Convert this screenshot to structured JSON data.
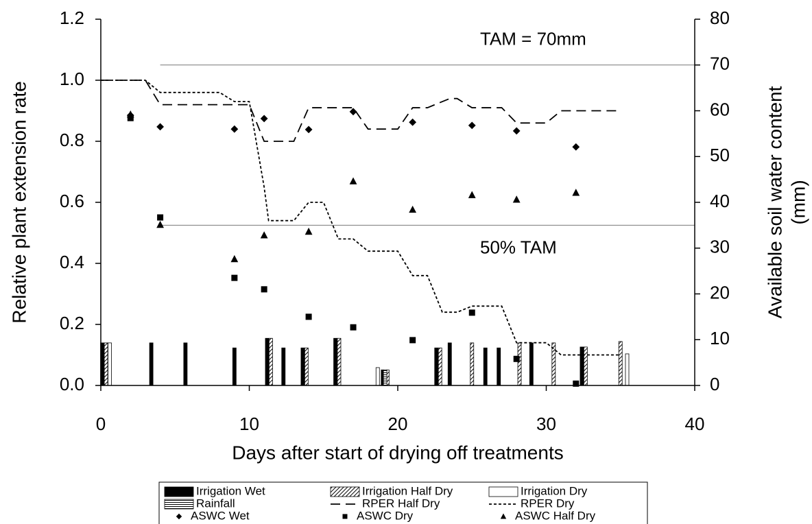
{
  "chart_data": {
    "type": "combo",
    "xlabel": "Days after start of drying off treatments",
    "ylabel": "Relative plant extension rate",
    "y2label": [
      "Available soil water content",
      "(mm)"
    ],
    "xlim": [
      0,
      40
    ],
    "xticks": [
      0,
      10,
      20,
      30,
      40
    ],
    "ylim": [
      0,
      1.2
    ],
    "yticks": [
      {
        "value": 0,
        "label": "0.0"
      },
      {
        "value": 0.2,
        "label": "0.2"
      },
      {
        "value": 0.4,
        "label": "0.4"
      },
      {
        "value": 0.6,
        "label": "0.6"
      },
      {
        "value": 0.8,
        "label": "0.8"
      },
      {
        "value": 1,
        "label": "1.0"
      },
      {
        "value": 1.2,
        "label": "1.2"
      }
    ],
    "y2lim": [
      0,
      80
    ],
    "y2ticks": [
      0,
      10,
      20,
      30,
      40,
      50,
      60,
      70,
      80
    ],
    "reference_lines": [
      {
        "value": 70,
        "axis": "y2",
        "xmin": 4,
        "xmax": 40,
        "label": "TAM = 70mm",
        "label_x": 20
      },
      {
        "value": 35,
        "axis": "y2",
        "xmin": 4,
        "xmax": 40,
        "label": "50% TAM",
        "label_x": 20
      }
    ],
    "series": [
      {
        "name": "Irrigation Wet",
        "kind": "bar",
        "axis": "y2",
        "pattern": "solid",
        "color": "#000000",
        "x": [
          0.1,
          3.4,
          5.7,
          9,
          11.2,
          12.3,
          13.6,
          15.8,
          19,
          22.6,
          23.5,
          25.9,
          26.8,
          29,
          32.4
        ],
        "values": [
          9.3,
          9.3,
          9.3,
          8.2,
          10.3,
          8.2,
          8.2,
          10.3,
          3.4,
          8.2,
          9.3,
          8.2,
          8.2,
          9.3,
          8.4
        ]
      },
      {
        "name": "Irrigation Half Dry",
        "kind": "bar",
        "axis": "y2",
        "pattern": "diag",
        "color": "#000000",
        "x": [
          0.35,
          11.45,
          13.85,
          16.05,
          19.3,
          22.85,
          25,
          28.2,
          30.5,
          32.65,
          35
        ],
        "values": [
          9.3,
          10.3,
          8.2,
          10.3,
          3.4,
          8.2,
          9.3,
          9.3,
          9.3,
          8.4,
          9.6
        ]
      },
      {
        "name": "Irrigation Dry",
        "kind": "bar",
        "axis": "y2",
        "pattern": "open",
        "color": "#000000",
        "x": [
          0.6,
          18.65,
          35.45
        ],
        "values": [
          9.3,
          3.9,
          6.9
        ]
      },
      {
        "name": "Rainfall",
        "kind": "bar",
        "axis": "y2",
        "pattern": "hstripe",
        "color": "#000000",
        "x": [
          19.15
        ],
        "values": [
          3.4
        ]
      },
      {
        "name": "RPER Half Dry",
        "kind": "line",
        "axis": "y",
        "dash": "14,8",
        "color": "#000000",
        "x": [
          0,
          3,
          4,
          10,
          11,
          13,
          14,
          17,
          18,
          20,
          21,
          22,
          23.5,
          24,
          25,
          27,
          28,
          30,
          31,
          35
        ],
        "values": [
          1.0,
          1.0,
          0.92,
          0.92,
          0.8,
          0.8,
          0.91,
          0.91,
          0.84,
          0.84,
          0.91,
          0.91,
          0.94,
          0.94,
          0.91,
          0.91,
          0.86,
          0.86,
          0.9,
          0.9
        ]
      },
      {
        "name": "RPER Dry",
        "kind": "line",
        "axis": "y",
        "dash": "4,3",
        "color": "#000000",
        "x": [
          0,
          3,
          4,
          8,
          9,
          10,
          11,
          11.3,
          13,
          14,
          15,
          16,
          17,
          18,
          20,
          21,
          22,
          23,
          24,
          25,
          27,
          28,
          30,
          31,
          35
        ],
        "values": [
          1.0,
          1.0,
          0.96,
          0.96,
          0.93,
          0.93,
          0.65,
          0.54,
          0.54,
          0.6,
          0.6,
          0.48,
          0.48,
          0.44,
          0.44,
          0.36,
          0.36,
          0.24,
          0.24,
          0.26,
          0.26,
          0.14,
          0.14,
          0.1,
          0.1
        ]
      },
      {
        "name": "ASWC Wet",
        "kind": "scatter",
        "axis": "y2",
        "marker": "diamond",
        "color": "#000000",
        "x": [
          2,
          4,
          9,
          11,
          14,
          17,
          21,
          25,
          28,
          32
        ],
        "values": [
          59,
          56.5,
          56,
          58.3,
          55.9,
          59.8,
          57.5,
          56.8,
          55.6,
          52.1
        ]
      },
      {
        "name": "ASWC Dry",
        "kind": "scatter",
        "axis": "y2",
        "marker": "square",
        "color": "#000000",
        "x": [
          2,
          4,
          9,
          11,
          14,
          17,
          21,
          25,
          28,
          32
        ],
        "values": [
          58.4,
          36.7,
          23.5,
          21,
          15,
          12.7,
          9.9,
          15.9,
          5.8,
          0.4
        ]
      },
      {
        "name": "ASWC Half Dry",
        "kind": "scatter",
        "axis": "y2",
        "marker": "triangle",
        "color": "#000000",
        "x": [
          2,
          4,
          9,
          11,
          14,
          17,
          21,
          25,
          28,
          32
        ],
        "values": [
          59.2,
          35.1,
          27.6,
          32.8,
          33.6,
          44.6,
          38.4,
          41.6,
          40.6,
          42.1
        ]
      }
    ]
  }
}
